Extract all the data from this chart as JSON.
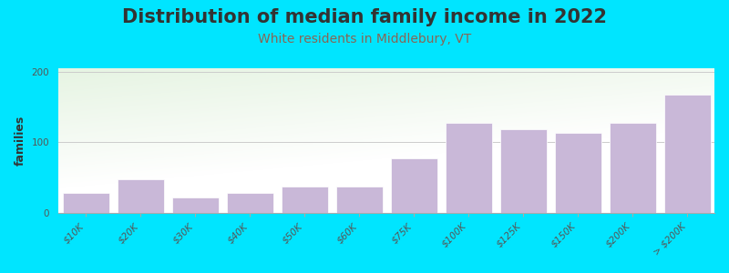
{
  "title": "Distribution of median family income in 2022",
  "subtitle": "White residents in Middlebury, VT",
  "ylabel": "families",
  "categories": [
    "$10K",
    "$20K",
    "$30K",
    "$40K",
    "$50K",
    "$60K",
    "$75K",
    "$100K",
    "$125K",
    "$150K",
    "$200K",
    "> $200K"
  ],
  "values": [
    28,
    48,
    22,
    28,
    38,
    38,
    78,
    128,
    118,
    113,
    128,
    168
  ],
  "bar_color": "#c9b8d8",
  "bar_edgecolor": "white",
  "background_outer": "#00e5ff",
  "background_inner": "#ffffff",
  "title_color": "#333333",
  "subtitle_color": "#886655",
  "ylabel_color": "#333333",
  "yticks": [
    0,
    100,
    200
  ],
  "ylim": [
    0,
    205
  ],
  "grid_color": "#cccccc",
  "tick_color": "#555555",
  "title_fontsize": 15,
  "subtitle_fontsize": 10,
  "ylabel_fontsize": 9,
  "tick_fontsize": 7.5
}
